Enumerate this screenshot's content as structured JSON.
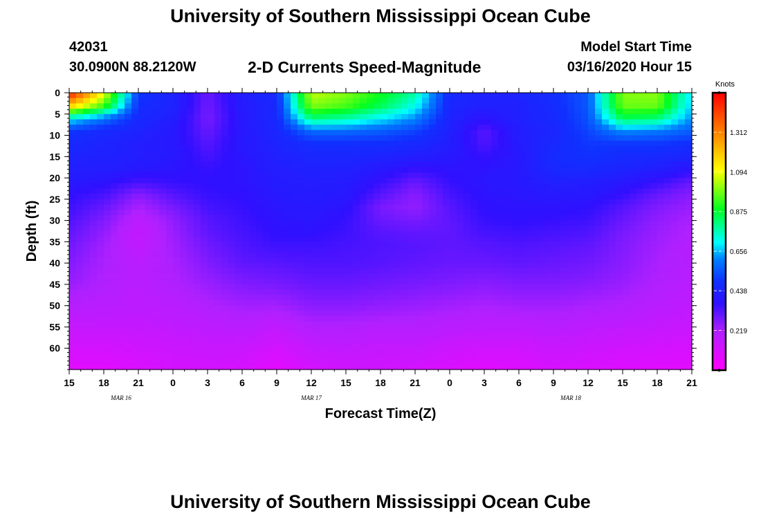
{
  "header": {
    "title_top": "University of Southern Mississippi Ocean Cube",
    "title_bottom": "University of Southern Mississippi Ocean Cube",
    "station_id": "42031",
    "station_coords": "30.0900N 88.2120W",
    "plot_title": "2-D Currents Speed-Magnitude",
    "model_start_label": "Model Start Time",
    "model_start_value": "03/16/2020 Hour 15"
  },
  "chart_data": {
    "type": "heatmap",
    "title": "2-D Currents Speed-Magnitude",
    "xlabel": "Forecast Time(Z)",
    "ylabel": "Depth (ft)",
    "x_unit": "hours since model start (03/16/2020 15Z)",
    "xlim": [
      0,
      54
    ],
    "ylim": [
      0,
      65
    ],
    "x_tick_hours": [
      0,
      3,
      6,
      9,
      12,
      15,
      18,
      21,
      24,
      27,
      30,
      33,
      36,
      39,
      42,
      45,
      48,
      51,
      54
    ],
    "x_tick_labels": [
      "15",
      "18",
      "21",
      "0",
      "3",
      "6",
      "9",
      "12",
      "15",
      "18",
      "21",
      "0",
      "3",
      "6",
      "9",
      "12",
      "15",
      "18",
      "21"
    ],
    "date_labels": [
      {
        "text": "MAR 16",
        "hour": 4.5
      },
      {
        "text": "MAR 17",
        "hour": 21
      },
      {
        "text": "MAR 18",
        "hour": 43.5
      }
    ],
    "y_ticks": [
      0,
      5,
      10,
      15,
      20,
      25,
      30,
      35,
      40,
      45,
      50,
      55,
      60
    ],
    "colorbar": {
      "label": "Knots",
      "min": 0.0,
      "max": 1.53,
      "ticks": [
        0.219,
        0.438,
        0.656,
        0.875,
        1.094,
        1.312
      ],
      "tick_labels": [
        "0.219",
        "0.438",
        "0.656",
        "0.875",
        "1.094",
        "1.312"
      ]
    },
    "grid_hours": [
      0,
      3,
      6,
      9,
      12,
      15,
      18,
      21,
      24,
      27,
      30,
      33,
      36,
      39,
      42,
      45,
      48,
      51,
      54
    ],
    "grid_depths": [
      0,
      3,
      6,
      9,
      12,
      15,
      18,
      21,
      24,
      27,
      30,
      33,
      36,
      40,
      45,
      50,
      55,
      60,
      65
    ],
    "speed_knots": [
      [
        1.5,
        1.1,
        0.5,
        0.44,
        0.3,
        0.42,
        0.47,
        1.05,
        1.0,
        0.9,
        0.78,
        0.46,
        0.43,
        0.44,
        0.48,
        0.55,
        1.0,
        1.0,
        0.68
      ],
      [
        1.2,
        0.95,
        0.48,
        0.44,
        0.29,
        0.41,
        0.46,
        1.0,
        0.95,
        0.85,
        0.72,
        0.45,
        0.43,
        0.43,
        0.47,
        0.55,
        0.98,
        0.98,
        0.66
      ],
      [
        0.72,
        0.6,
        0.46,
        0.42,
        0.28,
        0.4,
        0.46,
        0.82,
        0.78,
        0.7,
        0.62,
        0.44,
        0.38,
        0.43,
        0.46,
        0.54,
        0.85,
        0.82,
        0.62
      ],
      [
        0.5,
        0.46,
        0.44,
        0.4,
        0.3,
        0.4,
        0.45,
        0.58,
        0.58,
        0.56,
        0.52,
        0.43,
        0.32,
        0.42,
        0.45,
        0.52,
        0.62,
        0.6,
        0.56
      ],
      [
        0.46,
        0.44,
        0.42,
        0.4,
        0.32,
        0.4,
        0.44,
        0.48,
        0.48,
        0.48,
        0.46,
        0.42,
        0.33,
        0.41,
        0.46,
        0.5,
        0.5,
        0.5,
        0.48
      ],
      [
        0.44,
        0.43,
        0.42,
        0.4,
        0.34,
        0.39,
        0.43,
        0.45,
        0.45,
        0.44,
        0.42,
        0.4,
        0.36,
        0.4,
        0.47,
        0.49,
        0.47,
        0.46,
        0.44
      ],
      [
        0.42,
        0.42,
        0.4,
        0.38,
        0.36,
        0.38,
        0.42,
        0.43,
        0.43,
        0.4,
        0.36,
        0.38,
        0.38,
        0.4,
        0.46,
        0.46,
        0.44,
        0.42,
        0.38
      ],
      [
        0.4,
        0.38,
        0.34,
        0.36,
        0.37,
        0.38,
        0.41,
        0.42,
        0.41,
        0.36,
        0.3,
        0.36,
        0.39,
        0.4,
        0.43,
        0.42,
        0.4,
        0.36,
        0.3
      ],
      [
        0.37,
        0.34,
        0.26,
        0.32,
        0.36,
        0.37,
        0.4,
        0.41,
        0.4,
        0.32,
        0.26,
        0.34,
        0.38,
        0.39,
        0.4,
        0.4,
        0.36,
        0.3,
        0.26
      ],
      [
        0.35,
        0.3,
        0.22,
        0.28,
        0.34,
        0.36,
        0.39,
        0.4,
        0.38,
        0.28,
        0.25,
        0.32,
        0.37,
        0.38,
        0.38,
        0.37,
        0.32,
        0.27,
        0.24
      ],
      [
        0.33,
        0.27,
        0.18,
        0.25,
        0.32,
        0.35,
        0.38,
        0.39,
        0.36,
        0.3,
        0.28,
        0.31,
        0.36,
        0.37,
        0.36,
        0.35,
        0.3,
        0.25,
        0.22
      ],
      [
        0.31,
        0.25,
        0.16,
        0.24,
        0.31,
        0.34,
        0.37,
        0.37,
        0.35,
        0.32,
        0.31,
        0.31,
        0.34,
        0.35,
        0.34,
        0.33,
        0.28,
        0.24,
        0.21
      ],
      [
        0.29,
        0.23,
        0.17,
        0.23,
        0.29,
        0.33,
        0.35,
        0.35,
        0.34,
        0.33,
        0.32,
        0.31,
        0.32,
        0.33,
        0.32,
        0.31,
        0.27,
        0.23,
        0.2
      ],
      [
        0.27,
        0.22,
        0.19,
        0.22,
        0.27,
        0.31,
        0.32,
        0.33,
        0.33,
        0.32,
        0.31,
        0.3,
        0.3,
        0.31,
        0.3,
        0.29,
        0.26,
        0.22,
        0.2
      ],
      [
        0.24,
        0.21,
        0.19,
        0.21,
        0.24,
        0.27,
        0.28,
        0.3,
        0.3,
        0.29,
        0.28,
        0.27,
        0.26,
        0.27,
        0.27,
        0.26,
        0.24,
        0.21,
        0.19
      ],
      [
        0.2,
        0.19,
        0.18,
        0.19,
        0.21,
        0.23,
        0.23,
        0.26,
        0.26,
        0.25,
        0.24,
        0.23,
        0.22,
        0.23,
        0.23,
        0.22,
        0.21,
        0.19,
        0.17
      ],
      [
        0.16,
        0.16,
        0.16,
        0.17,
        0.18,
        0.19,
        0.17,
        0.21,
        0.21,
        0.2,
        0.2,
        0.19,
        0.18,
        0.18,
        0.19,
        0.18,
        0.17,
        0.16,
        0.15
      ],
      [
        0.12,
        0.12,
        0.13,
        0.14,
        0.15,
        0.15,
        0.12,
        0.16,
        0.17,
        0.16,
        0.16,
        0.14,
        0.13,
        0.13,
        0.15,
        0.14,
        0.13,
        0.12,
        0.11
      ],
      [
        0.08,
        0.08,
        0.1,
        0.12,
        0.12,
        0.11,
        0.07,
        0.12,
        0.13,
        0.13,
        0.12,
        0.1,
        0.08,
        0.09,
        0.11,
        0.1,
        0.09,
        0.08,
        0.08
      ]
    ]
  }
}
